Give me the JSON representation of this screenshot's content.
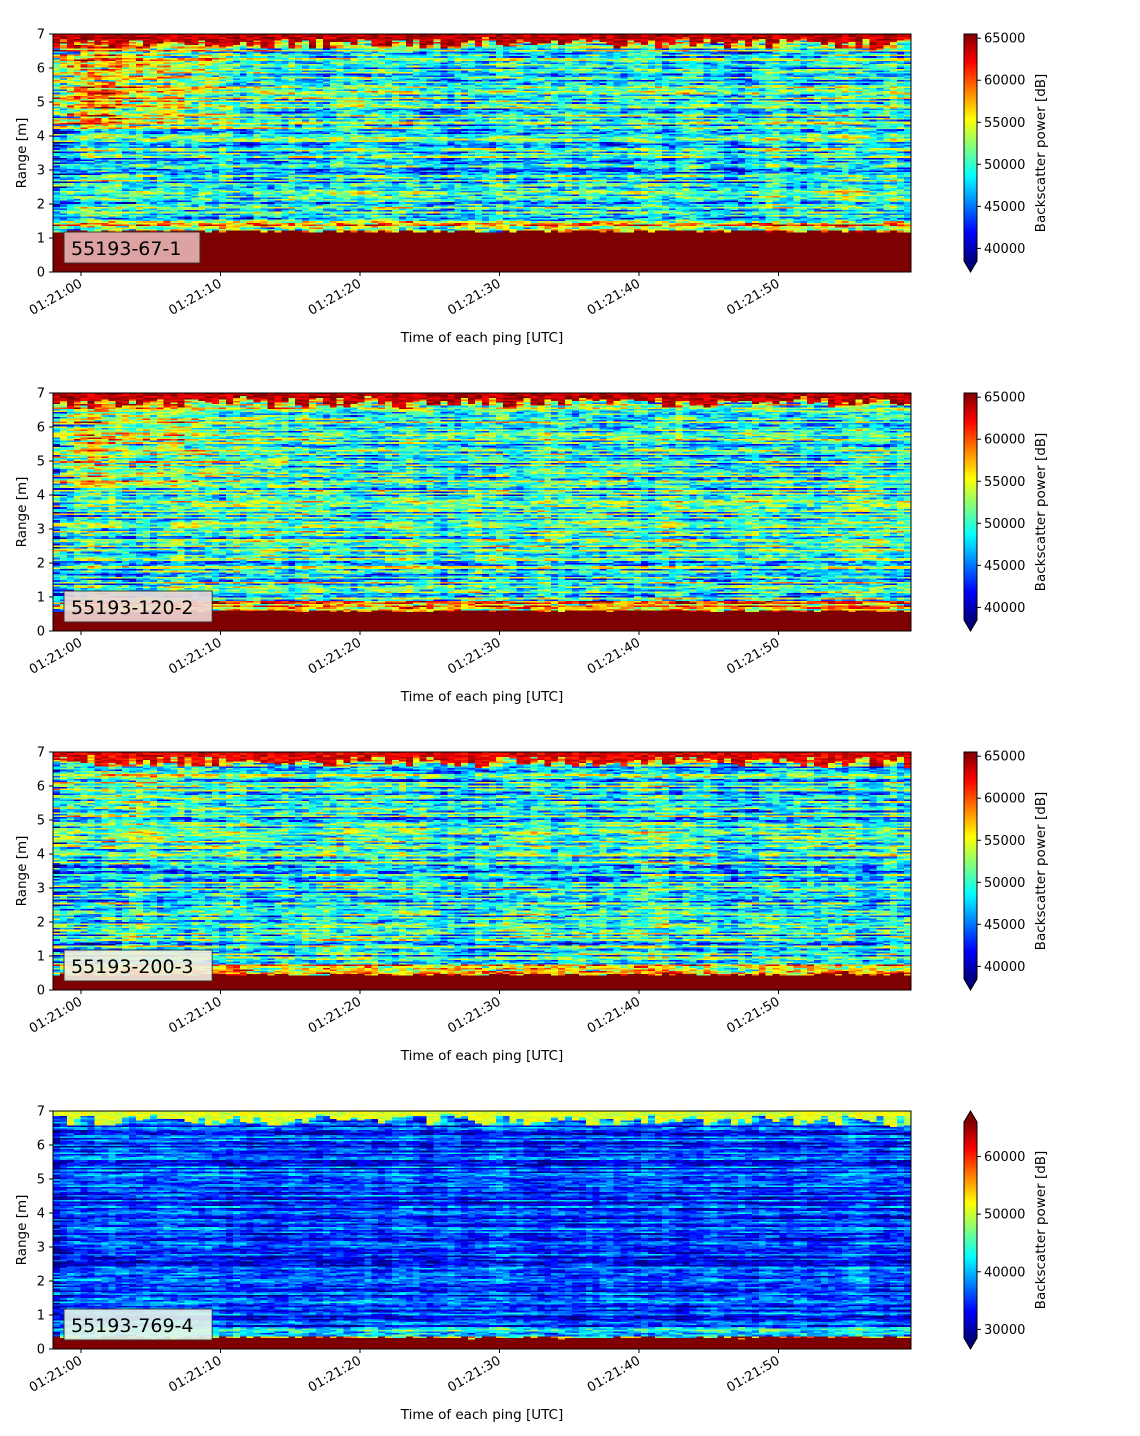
{
  "colormap": [
    "#00007f",
    "#0000ff",
    "#007fff",
    "#00ffff",
    "#7fff7f",
    "#ffff00",
    "#ff7f00",
    "#ff0000",
    "#7f0000"
  ],
  "chart_data": [
    {
      "type": "heatmap",
      "label": "55193-67-1",
      "label_bg": "#e8b4b4",
      "xlabel": "Time of each ping [UTC]",
      "ylabel": "Range [m]",
      "xticks": [
        "01:21:00",
        "01:21:10",
        "01:21:20",
        "01:21:30",
        "01:21:40",
        "01:21:50"
      ],
      "yticks": [
        0,
        1,
        2,
        3,
        4,
        5,
        6,
        7
      ],
      "ylim": [
        0,
        7
      ],
      "colorbar_label": "Backscatter power [dB]",
      "colorbar_ticks": [
        40000,
        45000,
        50000,
        55000,
        60000,
        65000
      ],
      "clim": [
        38500,
        65500
      ],
      "colorbar_extend": "min",
      "seed": 11,
      "mean": 49500,
      "spread": 6500,
      "bottom_band_top": 1.15,
      "bottom_band_value": 66000,
      "top_band_value": 63000,
      "early_boost": 9000
    },
    {
      "type": "heatmap",
      "label": "55193-120-2",
      "label_bg": "#f0d8d8",
      "xlabel": "Time of each ping [UTC]",
      "ylabel": "Range [m]",
      "xticks": [
        "01:21:00",
        "01:21:10",
        "01:21:20",
        "01:21:30",
        "01:21:40",
        "01:21:50"
      ],
      "yticks": [
        0,
        1,
        2,
        3,
        4,
        5,
        6,
        7
      ],
      "ylim": [
        0,
        7
      ],
      "colorbar_label": "Backscatter power [dB]",
      "colorbar_ticks": [
        40000,
        45000,
        50000,
        55000,
        60000,
        65000
      ],
      "clim": [
        38500,
        65500
      ],
      "colorbar_extend": "min",
      "seed": 23,
      "mean": 50000,
      "spread": 6500,
      "bottom_band_top": 0.55,
      "bottom_band_value": 66000,
      "top_band_value": 63000,
      "early_boost": 7000
    },
    {
      "type": "heatmap",
      "label": "55193-200-3",
      "label_bg": "#f2f0e0",
      "xlabel": "Time of each ping [UTC]",
      "ylabel": "Range [m]",
      "xticks": [
        "01:21:00",
        "01:21:10",
        "01:21:20",
        "01:21:30",
        "01:21:40",
        "01:21:50"
      ],
      "yticks": [
        0,
        1,
        2,
        3,
        4,
        5,
        6,
        7
      ],
      "ylim": [
        0,
        7
      ],
      "colorbar_label": "Backscatter power [dB]",
      "colorbar_ticks": [
        40000,
        45000,
        50000,
        55000,
        60000,
        65000
      ],
      "clim": [
        38500,
        65500
      ],
      "colorbar_extend": "min",
      "seed": 37,
      "mean": 49000,
      "spread": 6500,
      "bottom_band_top": 0.4,
      "bottom_band_value": 66000,
      "top_band_value": 62000,
      "early_boost": 4000
    },
    {
      "type": "heatmap",
      "label": "55193-769-4",
      "label_bg": "#e6f6ea",
      "xlabel": "Time of each ping [UTC]",
      "ylabel": "Range [m]",
      "xticks": [
        "01:21:00",
        "01:21:10",
        "01:21:20",
        "01:21:30",
        "01:21:40",
        "01:21:50"
      ],
      "yticks": [
        0,
        1,
        2,
        3,
        4,
        5,
        6,
        7
      ],
      "ylim": [
        0,
        7
      ],
      "colorbar_label": "Backscatter power [dB]",
      "colorbar_ticks": [
        30000,
        40000,
        50000,
        60000
      ],
      "clim": [
        28500,
        66000
      ],
      "colorbar_extend": "both",
      "seed": 53,
      "mean": 35500,
      "spread": 5500,
      "bottom_band_top": 0.3,
      "bottom_band_value": 66000,
      "top_band_value": 50000,
      "early_boost": 0
    }
  ]
}
